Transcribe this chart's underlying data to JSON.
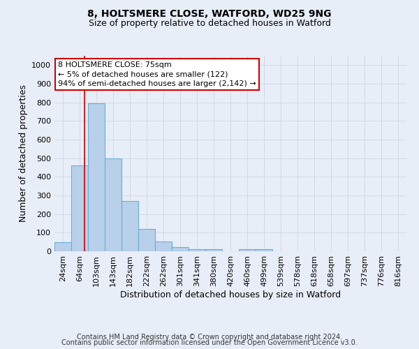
{
  "title1": "8, HOLTSMERE CLOSE, WATFORD, WD25 9NG",
  "title2": "Size of property relative to detached houses in Watford",
  "xlabel": "Distribution of detached houses by size in Watford",
  "ylabel": "Number of detached properties",
  "categories": [
    "24sqm",
    "64sqm",
    "103sqm",
    "143sqm",
    "182sqm",
    "222sqm",
    "262sqm",
    "301sqm",
    "341sqm",
    "380sqm",
    "420sqm",
    "460sqm",
    "499sqm",
    "539sqm",
    "578sqm",
    "618sqm",
    "658sqm",
    "697sqm",
    "737sqm",
    "776sqm",
    "816sqm"
  ],
  "bar_values": [
    50,
    460,
    795,
    500,
    270,
    120,
    52,
    22,
    13,
    13,
    0,
    10,
    10,
    0,
    0,
    0,
    0,
    0,
    0,
    0,
    0
  ],
  "bar_color": "#b8d0ea",
  "bar_edge_color": "#6aaed6",
  "ylim": [
    0,
    1050
  ],
  "yticks": [
    0,
    100,
    200,
    300,
    400,
    500,
    600,
    700,
    800,
    900,
    1000
  ],
  "red_line_x": 1.28,
  "annotation_text": "8 HOLTSMERE CLOSE: 75sqm\n← 5% of detached houses are smaller (122)\n94% of semi-detached houses are larger (2,142) →",
  "annotation_box_color": "#ffffff",
  "annotation_box_edge": "#cc0000",
  "footer1": "Contains HM Land Registry data © Crown copyright and database right 2024.",
  "footer2": "Contains public sector information licensed under the Open Government Licence v3.0.",
  "bg_color": "#e8eef8",
  "grid_color": "#c8d0dc",
  "title1_fontsize": 10,
  "title2_fontsize": 9,
  "xlabel_fontsize": 9,
  "ylabel_fontsize": 9,
  "tick_fontsize": 8,
  "footer_fontsize": 7
}
